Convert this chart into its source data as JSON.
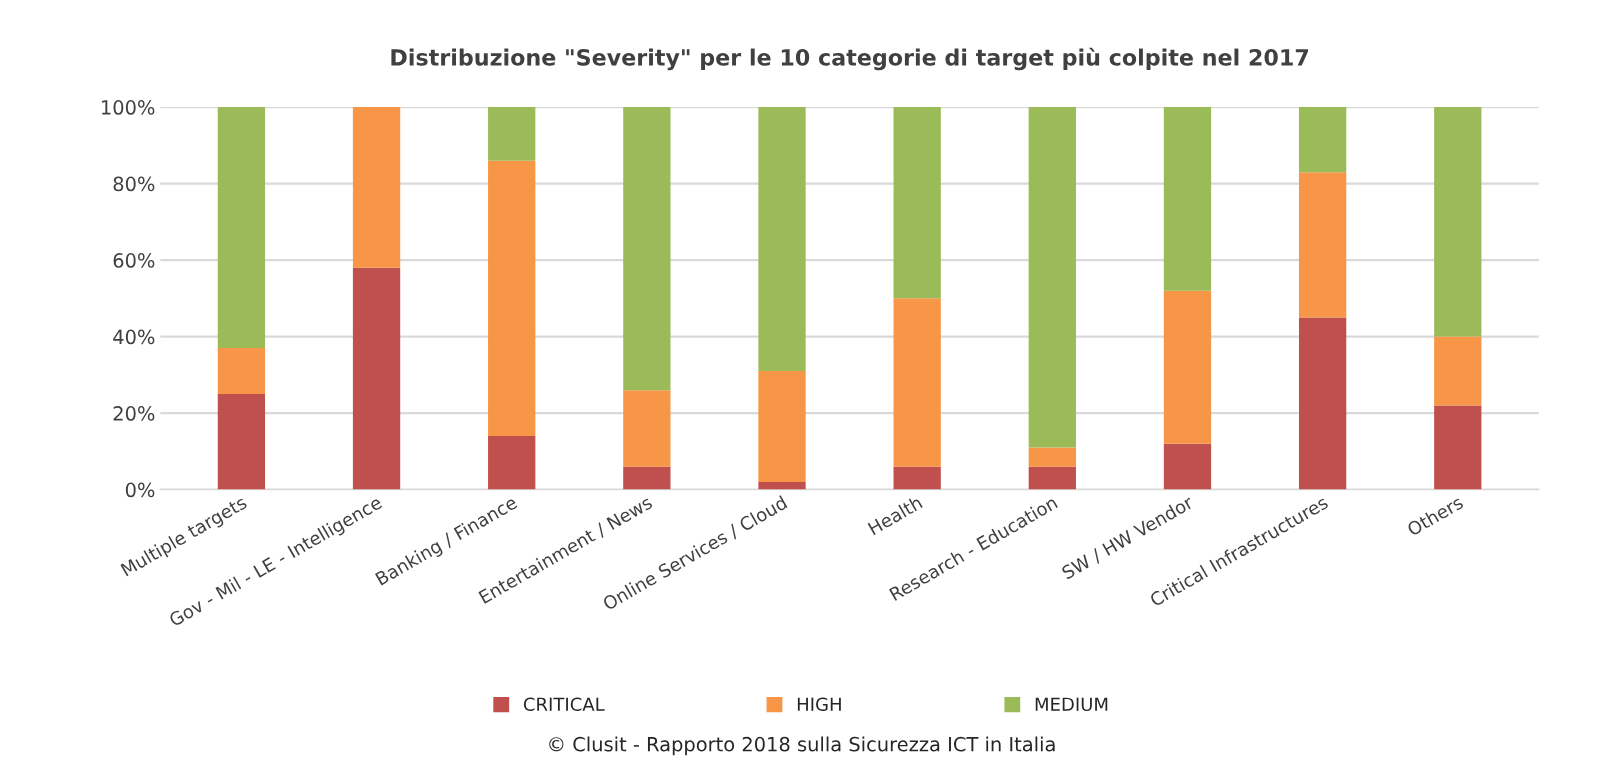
{
  "chart_data": {
    "type": "bar",
    "title": "Distribuzione \"Severity\" per le 10 categorie di target più colpite nel 2017",
    "categories": [
      "Multiple targets",
      "Gov - Mil - LE - Intelligence",
      "Banking / Finance",
      "Entertainment / News",
      "Online Services / Cloud",
      "Health",
      "Research - Education",
      "SW / HW Vendor",
      "Critical Infrastructures",
      "Others"
    ],
    "series": [
      {
        "name": "CRITICAL",
        "color": "#c0504d",
        "values": [
          25,
          58,
          14,
          6,
          2,
          6,
          6,
          12,
          45,
          22
        ]
      },
      {
        "name": "HIGH",
        "color": "#f79646",
        "values": [
          12,
          42,
          72,
          20,
          29,
          44,
          5,
          40,
          38,
          18
        ]
      },
      {
        "name": "MEDIUM",
        "color": "#9bbb59",
        "values": [
          63,
          0,
          14,
          74,
          69,
          50,
          89,
          48,
          17,
          60
        ]
      }
    ],
    "stacked": true,
    "ylim": [
      0,
      100
    ],
    "yticks": [
      {
        "value": 0,
        "label": "0%"
      },
      {
        "value": 20,
        "label": "20%"
      },
      {
        "value": 40,
        "label": "40%"
      },
      {
        "value": 60,
        "label": "60%"
      },
      {
        "value": 80,
        "label": "80%"
      },
      {
        "value": 100,
        "label": "100%"
      }
    ],
    "grid": "y",
    "legend": "bottom",
    "annotations": [
      "© Clusit - Rapporto 2018 sulla Sicurezza ICT in Italia"
    ]
  }
}
